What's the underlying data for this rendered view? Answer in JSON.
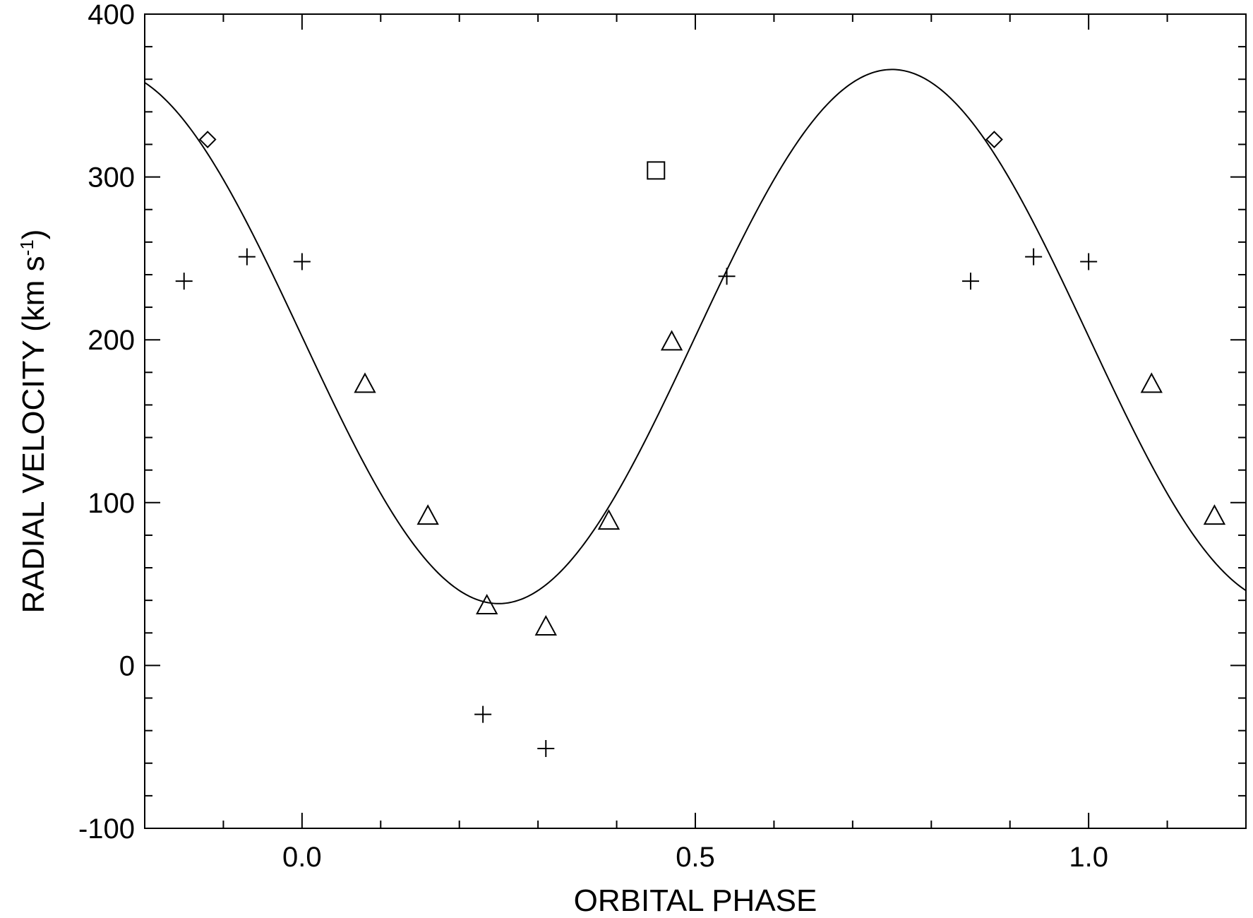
{
  "chart_data": {
    "type": "scatter",
    "xlabel": "ORBITAL PHASE",
    "ylabel_main": "RADIAL VELOCITY (km s",
    "ylabel_sup": "-1",
    "ylabel_end": ")",
    "xlim": [
      -0.2,
      1.2
    ],
    "ylim": [
      -100,
      400
    ],
    "x_major_ticks": [
      {
        "value": 0.0,
        "label": "0.0"
      },
      {
        "value": 0.5,
        "label": "0.5"
      },
      {
        "value": 1.0,
        "label": "1.0"
      }
    ],
    "x_minor_step": 0.1,
    "y_major_ticks": [
      {
        "value": -100,
        "label": "-100"
      },
      {
        "value": 0,
        "label": "0"
      },
      {
        "value": 100,
        "label": "100"
      },
      {
        "value": 200,
        "label": "200"
      },
      {
        "value": 300,
        "label": "300"
      },
      {
        "value": 400,
        "label": "400"
      }
    ],
    "y_minor_step": 20,
    "fit_curve": {
      "type": "sine",
      "gamma": 202,
      "amplitude": 164,
      "phase_of_minimum": 0.25
    },
    "series": [
      {
        "marker": "plus",
        "points": [
          {
            "x": -0.15,
            "y": 236
          },
          {
            "x": -0.07,
            "y": 251
          },
          {
            "x": 0.0,
            "y": 248
          },
          {
            "x": 0.23,
            "y": -30
          },
          {
            "x": 0.31,
            "y": -51
          },
          {
            "x": 0.54,
            "y": 239
          },
          {
            "x": 0.85,
            "y": 236
          },
          {
            "x": 0.93,
            "y": 251
          },
          {
            "x": 1.0,
            "y": 248
          }
        ]
      },
      {
        "marker": "triangle",
        "points": [
          {
            "x": 0.08,
            "y": 173
          },
          {
            "x": 0.16,
            "y": 92
          },
          {
            "x": 0.235,
            "y": 37
          },
          {
            "x": 0.31,
            "y": 24
          },
          {
            "x": 0.39,
            "y": 89
          },
          {
            "x": 0.47,
            "y": 199
          },
          {
            "x": 1.08,
            "y": 173
          },
          {
            "x": 1.16,
            "y": 92
          }
        ]
      },
      {
        "marker": "diamond",
        "points": [
          {
            "x": -0.12,
            "y": 323
          },
          {
            "x": 0.88,
            "y": 323
          }
        ]
      },
      {
        "marker": "square",
        "points": [
          {
            "x": 0.45,
            "y": 304
          }
        ]
      }
    ]
  }
}
